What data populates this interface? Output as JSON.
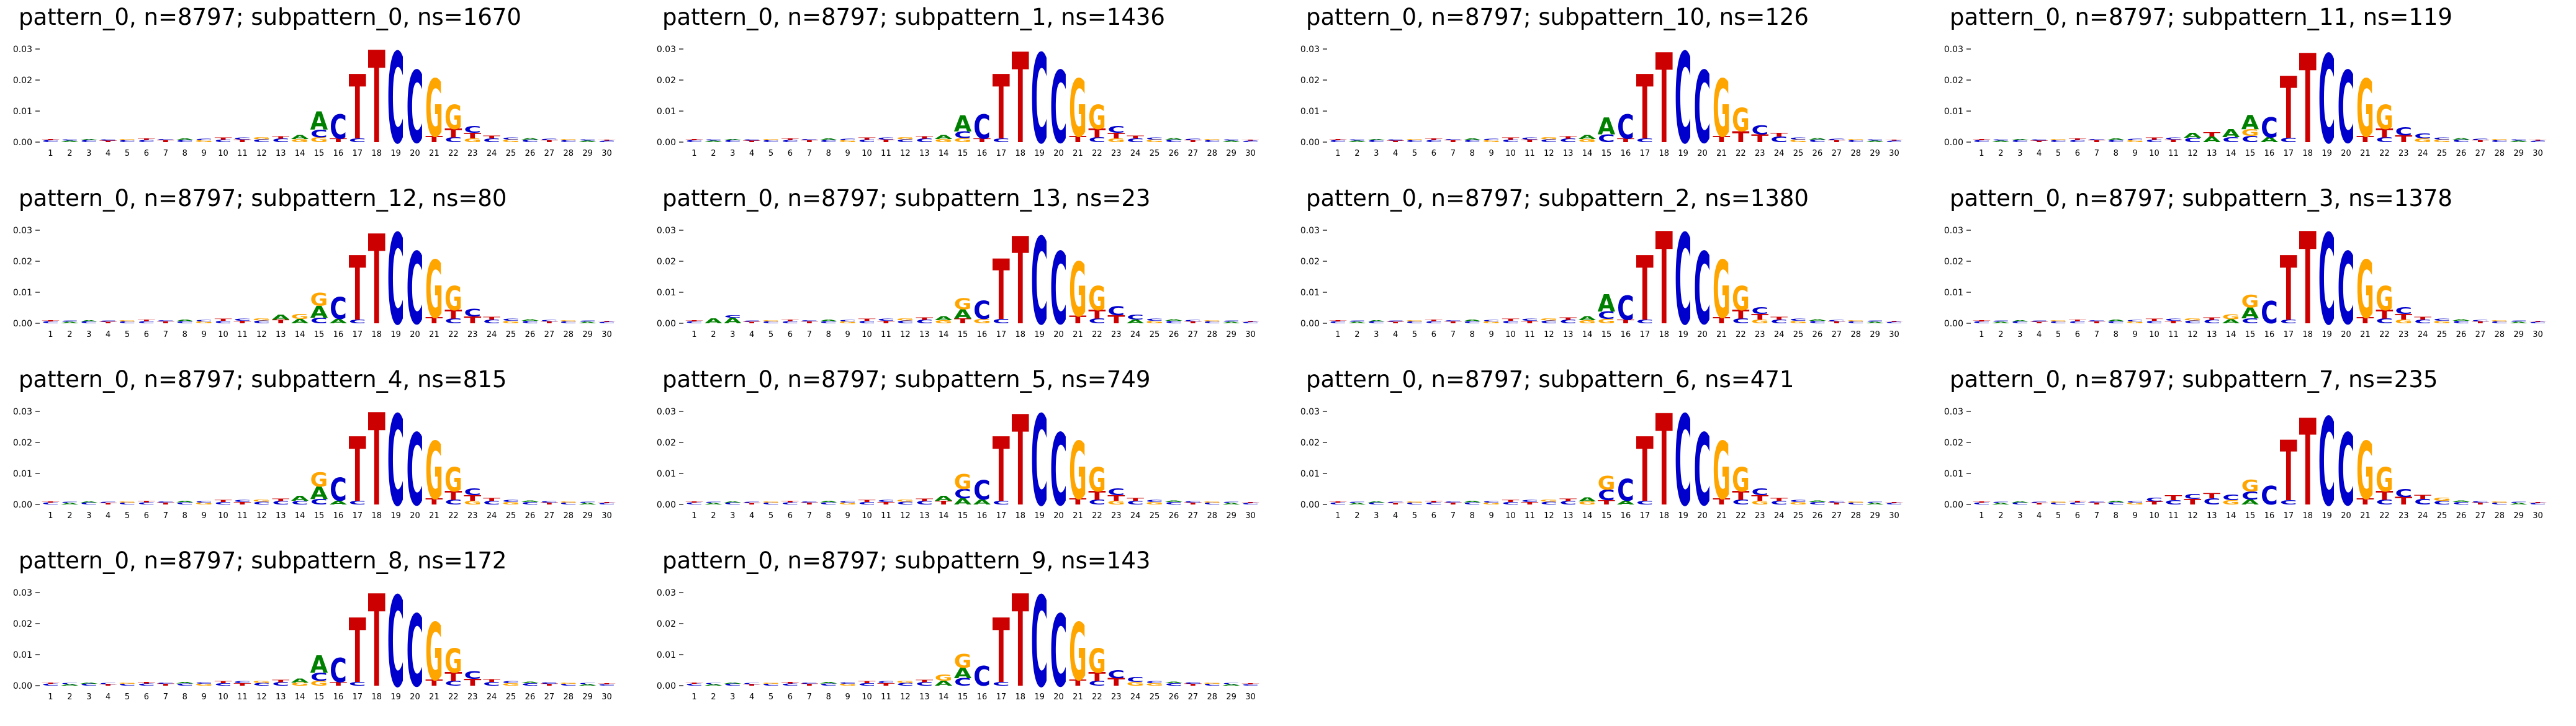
{
  "page": {
    "background": "#ffffff"
  },
  "chart_data": {
    "type": "sequence-logo-grid",
    "grid": {
      "columns": 4,
      "rows": 4,
      "num_panels": 14
    },
    "xticks": [
      1,
      2,
      3,
      4,
      5,
      6,
      7,
      8,
      9,
      10,
      11,
      12,
      13,
      14,
      15,
      16,
      17,
      18,
      19,
      20,
      21,
      22,
      23,
      24,
      25,
      26,
      27,
      28,
      29,
      30
    ],
    "ytick_values": [
      0,
      0.01,
      0.02,
      0.03
    ],
    "ytick_labels": [
      "0.00",
      "0.01",
      "0.02",
      "0.03"
    ],
    "ylim": [
      0,
      0.033
    ],
    "legend": "none",
    "colors": {
      "A": "#008000",
      "C": "#0000cc",
      "G": "#ffa500",
      "T": "#cc0000"
    },
    "consensus_motif": "ACTTCCGG",
    "default_stacks": {
      "1": [
        [
          "C",
          0.0006
        ],
        [
          "T",
          0.0004
        ]
      ],
      "2": [
        [
          "A",
          0.0005
        ],
        [
          "C",
          0.0004
        ]
      ],
      "3": [
        [
          "C",
          0.0006
        ],
        [
          "A",
          0.0004
        ]
      ],
      "4": [
        [
          "T",
          0.0005
        ],
        [
          "C",
          0.0004
        ]
      ],
      "5": [
        [
          "C",
          0.0006
        ],
        [
          "G",
          0.0004
        ]
      ],
      "6": [
        [
          "C",
          0.0007
        ],
        [
          "T",
          0.0005
        ]
      ],
      "7": [
        [
          "T",
          0.0006
        ],
        [
          "C",
          0.0004
        ]
      ],
      "8": [
        [
          "C",
          0.0007
        ],
        [
          "A",
          0.0005
        ]
      ],
      "9": [
        [
          "G",
          0.0006
        ],
        [
          "C",
          0.0005
        ]
      ],
      "10": [
        [
          "C",
          0.0008
        ],
        [
          "T",
          0.0006
        ]
      ],
      "11": [
        [
          "T",
          0.0008
        ],
        [
          "C",
          0.0006
        ]
      ],
      "12": [
        [
          "C",
          0.0009
        ],
        [
          "G",
          0.0006
        ]
      ],
      "13": [
        [
          "C",
          0.0011
        ],
        [
          "T",
          0.0008
        ]
      ],
      "14": [
        [
          "G",
          0.001
        ],
        [
          "A",
          0.0013
        ]
      ],
      "15": [
        [
          "G",
          0.0015
        ],
        [
          "C",
          0.0025
        ],
        [
          "A",
          0.0058
        ]
      ],
      "16": [
        [
          "T",
          0.0012
        ],
        [
          "C",
          0.0078
        ]
      ],
      "17": [
        [
          "C",
          0.0012
        ],
        [
          "T",
          0.0208
        ]
      ],
      "18": [
        [
          "T",
          0.0298
        ]
      ],
      "19": [
        [
          "C",
          0.0292
        ]
      ],
      "20": [
        [
          "C",
          0.0232
        ]
      ],
      "21": [
        [
          "T",
          0.002
        ],
        [
          "G",
          0.0185
        ]
      ],
      "22": [
        [
          "C",
          0.0015
        ],
        [
          "T",
          0.0028
        ],
        [
          "G",
          0.0078
        ]
      ],
      "23": [
        [
          "G",
          0.0012
        ],
        [
          "T",
          0.0018
        ],
        [
          "C",
          0.0022
        ]
      ],
      "24": [
        [
          "C",
          0.0012
        ],
        [
          "T",
          0.0009
        ]
      ],
      "25": [
        [
          "G",
          0.0008
        ],
        [
          "C",
          0.0007
        ]
      ],
      "26": [
        [
          "C",
          0.0008
        ],
        [
          "A",
          0.0005
        ]
      ],
      "27": [
        [
          "T",
          0.0006
        ],
        [
          "C",
          0.0005
        ]
      ],
      "28": [
        [
          "C",
          0.0006
        ],
        [
          "G",
          0.0004
        ]
      ],
      "29": [
        [
          "A",
          0.0005
        ],
        [
          "C",
          0.0004
        ]
      ],
      "30": [
        [
          "C",
          0.0005
        ],
        [
          "T",
          0.0003
        ]
      ]
    },
    "panels": [
      {
        "title": "pattern_0, n=8797; subpattern_0, ns=1670",
        "pattern": "pattern_0",
        "n": 8797,
        "subpattern": "subpattern_0",
        "ns": 1670,
        "overrides": {}
      },
      {
        "title": "pattern_0, n=8797; subpattern_1, ns=1436",
        "pattern": "pattern_0",
        "n": 8797,
        "subpattern": "subpattern_1",
        "ns": 1436,
        "overrides": {
          "15": [
            [
              "G",
              0.0013
            ],
            [
              "C",
              0.0022
            ],
            [
              "A",
              0.0052
            ]
          ],
          "18": [
            [
              "T",
              0.0292
            ]
          ],
          "19": [
            [
              "C",
              0.0288
            ]
          ]
        }
      },
      {
        "title": "pattern_0, n=8797; subpattern_10, ns=126",
        "pattern": "pattern_0",
        "n": 8797,
        "subpattern": "subpattern_10",
        "ns": 126,
        "overrides": {
          "15": [
            [
              "C",
              0.0025
            ],
            [
              "A",
              0.0055
            ]
          ],
          "18": [
            [
              "T",
              0.029
            ]
          ],
          "22": [
            [
              "T",
              0.0035
            ],
            [
              "G",
              0.0075
            ]
          ],
          "23": [
            [
              "T",
              0.0025
            ],
            [
              "C",
              0.0028
            ]
          ],
          "24": [
            [
              "C",
              0.0018
            ],
            [
              "T",
              0.0012
            ]
          ]
        }
      },
      {
        "title": "pattern_0, n=8797; subpattern_11, ns=119",
        "pattern": "pattern_0",
        "n": 8797,
        "subpattern": "subpattern_11",
        "ns": 119,
        "overrides": {
          "12": [
            [
              "C",
              0.0014
            ],
            [
              "A",
              0.0016
            ]
          ],
          "13": [
            [
              "A",
              0.0018
            ],
            [
              "T",
              0.0014
            ]
          ],
          "14": [
            [
              "C",
              0.0016
            ],
            [
              "A",
              0.0026
            ]
          ],
          "15": [
            [
              "C",
              0.002
            ],
            [
              "G",
              0.0022
            ],
            [
              "A",
              0.0045
            ]
          ],
          "16": [
            [
              "A",
              0.0015
            ],
            [
              "C",
              0.0065
            ]
          ],
          "17": [
            [
              "C",
              0.0014
            ],
            [
              "T",
              0.02
            ]
          ],
          "18": [
            [
              "T",
              0.0288
            ]
          ],
          "19": [
            [
              "C",
              0.0285
            ]
          ],
          "23": [
            [
              "T",
              0.0022
            ],
            [
              "C",
              0.0026
            ]
          ],
          "24": [
            [
              "G",
              0.0012
            ],
            [
              "C",
              0.0016
            ]
          ]
        }
      },
      {
        "title": "pattern_0, n=8797; subpattern_12, ns=80",
        "pattern": "pattern_0",
        "n": 8797,
        "subpattern": "subpattern_12",
        "ns": 80,
        "overrides": {
          "13": [
            [
              "T",
              0.0012
            ],
            [
              "A",
              0.0015
            ]
          ],
          "14": [
            [
              "A",
              0.0014
            ],
            [
              "G",
              0.0016
            ]
          ],
          "15": [
            [
              "C",
              0.0018
            ],
            [
              "A",
              0.0038
            ],
            [
              "G",
              0.0042
            ]
          ],
          "16": [
            [
              "A",
              0.0014
            ],
            [
              "C",
              0.007
            ]
          ],
          "18": [
            [
              "T",
              0.029
            ]
          ],
          "23": [
            [
              "T",
              0.0022
            ],
            [
              "C",
              0.0024
            ]
          ]
        }
      },
      {
        "title": "pattern_0, n=8797; subpattern_13, ns=23",
        "pattern": "pattern_0",
        "n": 8797,
        "subpattern": "subpattern_13",
        "ns": 23,
        "overrides": {
          "2": [
            [
              "A",
              0.0016
            ]
          ],
          "3": [
            [
              "A",
              0.0018
            ],
            [
              "C",
              0.0008
            ]
          ],
          "15": [
            [
              "T",
              0.0015
            ],
            [
              "A",
              0.003
            ],
            [
              "G",
              0.0036
            ]
          ],
          "16": [
            [
              "G",
              0.0014
            ],
            [
              "C",
              0.0058
            ]
          ],
          "17": [
            [
              "C",
              0.0014
            ],
            [
              "T",
              0.0195
            ]
          ],
          "18": [
            [
              "T",
              0.0282
            ]
          ],
          "19": [
            [
              "C",
              0.028
            ]
          ],
          "21": [
            [
              "T",
              0.0024
            ],
            [
              "G",
              0.0175
            ]
          ],
          "23": [
            [
              "T",
              0.0026
            ],
            [
              "C",
              0.0028
            ]
          ],
          "24": [
            [
              "A",
              0.0012
            ],
            [
              "C",
              0.0016
            ]
          ]
        }
      },
      {
        "title": "pattern_0, n=8797; subpattern_2, ns=1380",
        "pattern": "pattern_0",
        "n": 8797,
        "subpattern": "subpattern_2",
        "ns": 1380,
        "overrides": {
          "15": [
            [
              "G",
              0.0014
            ],
            [
              "C",
              0.0024
            ],
            [
              "A",
              0.0056
            ]
          ]
        }
      },
      {
        "title": "pattern_0, n=8797; subpattern_3, ns=1378",
        "pattern": "pattern_0",
        "n": 8797,
        "subpattern": "subpattern_3",
        "ns": 1378,
        "overrides": {
          "14": [
            [
              "A",
              0.0013
            ],
            [
              "G",
              0.0015
            ]
          ],
          "15": [
            [
              "C",
              0.0016
            ],
            [
              "A",
              0.0036
            ],
            [
              "G",
              0.004
            ]
          ],
          "16": [
            [
              "C",
              0.0072
            ]
          ]
        }
      },
      {
        "title": "pattern_0, n=8797; subpattern_4, ns=815",
        "pattern": "pattern_0",
        "n": 8797,
        "subpattern": "subpattern_4",
        "ns": 815,
        "overrides": {
          "14": [
            [
              "C",
              0.0012
            ],
            [
              "A",
              0.0015
            ]
          ],
          "15": [
            [
              "C",
              0.0018
            ],
            [
              "A",
              0.004
            ],
            [
              "G",
              0.0046
            ]
          ],
          "16": [
            [
              "A",
              0.0012
            ],
            [
              "C",
              0.0074
            ]
          ]
        }
      },
      {
        "title": "pattern_0, n=8797; subpattern_5, ns=749",
        "pattern": "pattern_0",
        "n": 8797,
        "subpattern": "subpattern_5",
        "ns": 749,
        "overrides": {
          "14": [
            [
              "T",
              0.0012
            ],
            [
              "A",
              0.0016
            ]
          ],
          "15": [
            [
              "A",
              0.002
            ],
            [
              "C",
              0.003
            ],
            [
              "G",
              0.0048
            ]
          ],
          "16": [
            [
              "A",
              0.0016
            ],
            [
              "C",
              0.0062
            ]
          ],
          "18": [
            [
              "T",
              0.0292
            ]
          ]
        }
      },
      {
        "title": "pattern_0, n=8797; subpattern_6, ns=471",
        "pattern": "pattern_0",
        "n": 8797,
        "subpattern": "subpattern_6",
        "ns": 471,
        "overrides": {
          "15": [
            [
              "T",
              0.0014
            ],
            [
              "C",
              0.0034
            ],
            [
              "G",
              0.0044
            ]
          ],
          "16": [
            [
              "A",
              0.0012
            ],
            [
              "C",
              0.007
            ]
          ],
          "18": [
            [
              "T",
              0.0295
            ]
          ]
        }
      },
      {
        "title": "pattern_0, n=8797; subpattern_7, ns=235",
        "pattern": "pattern_0",
        "n": 8797,
        "subpattern": "subpattern_7",
        "ns": 235,
        "overrides": {
          "10": [
            [
              "T",
              0.001
            ],
            [
              "C",
              0.0012
            ]
          ],
          "11": [
            [
              "C",
              0.0014
            ],
            [
              "T",
              0.0016
            ]
          ],
          "12": [
            [
              "T",
              0.0018
            ],
            [
              "C",
              0.0015
            ]
          ],
          "13": [
            [
              "C",
              0.002
            ],
            [
              "T",
              0.0017
            ]
          ],
          "14": [
            [
              "G",
              0.0014
            ],
            [
              "C",
              0.0018
            ]
          ],
          "15": [
            [
              "A",
              0.0016
            ],
            [
              "C",
              0.0026
            ],
            [
              "G",
              0.0038
            ]
          ],
          "16": [
            [
              "C",
              0.006
            ]
          ],
          "17": [
            [
              "C",
              0.0014
            ],
            [
              "T",
              0.0195
            ]
          ],
          "18": [
            [
              "T",
              0.028
            ]
          ],
          "19": [
            [
              "C",
              0.0283
            ]
          ],
          "23": [
            [
              "T",
              0.0024
            ],
            [
              "C",
              0.0026
            ]
          ],
          "24": [
            [
              "C",
              0.0018
            ],
            [
              "T",
              0.0013
            ]
          ],
          "25": [
            [
              "C",
              0.0012
            ],
            [
              "G",
              0.001
            ]
          ]
        }
      },
      {
        "title": "pattern_0, n=8797; subpattern_8, ns=172",
        "pattern": "pattern_0",
        "n": 8797,
        "subpattern": "subpattern_8",
        "ns": 172,
        "overrides": {
          "15": [
            [
              "G",
              0.0016
            ],
            [
              "C",
              0.0026
            ],
            [
              "A",
              0.0056
            ]
          ],
          "23": [
            [
              "T",
              0.0022
            ],
            [
              "C",
              0.0024
            ]
          ]
        }
      },
      {
        "title": "pattern_0, n=8797; subpattern_9, ns=143",
        "pattern": "pattern_0",
        "n": 8797,
        "subpattern": "subpattern_9",
        "ns": 143,
        "overrides": {
          "14": [
            [
              "A",
              0.0016
            ],
            [
              "G",
              0.002
            ]
          ],
          "15": [
            [
              "C",
              0.0024
            ],
            [
              "A",
              0.0034
            ],
            [
              "G",
              0.0044
            ]
          ],
          "16": [
            [
              "C",
              0.0064
            ]
          ],
          "23": [
            [
              "T",
              0.0024
            ],
            [
              "C",
              0.0026
            ]
          ],
          "24": [
            [
              "G",
              0.0012
            ],
            [
              "C",
              0.0015
            ]
          ]
        }
      }
    ]
  }
}
